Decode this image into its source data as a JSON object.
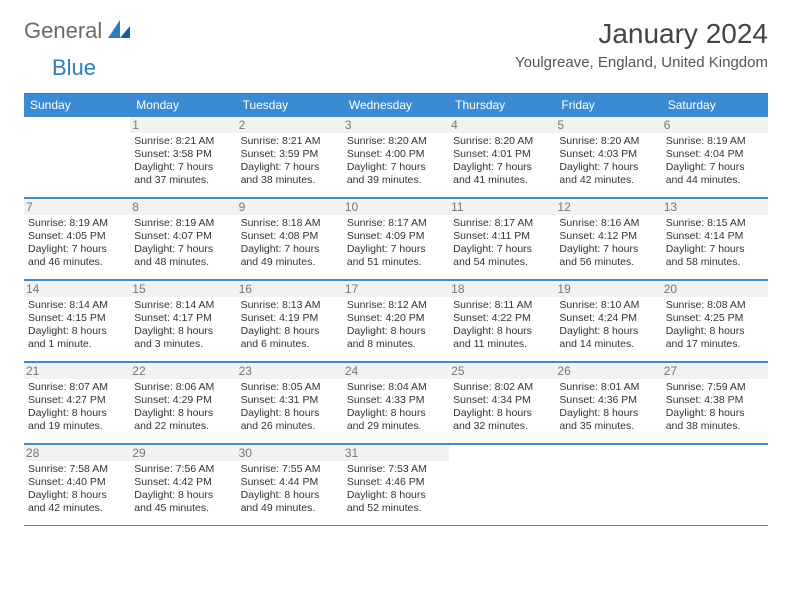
{
  "logo": {
    "text_general": "General",
    "text_blue": "Blue"
  },
  "title": "January 2024",
  "location": "Youlgreave, England, United Kingdom",
  "colors": {
    "header_bg": "#3b8bd4",
    "header_text": "#ffffff",
    "border": "#3b8bd4",
    "daynum_bg": "#f2f2f2",
    "daynum_text": "#777777",
    "body_text": "#333333",
    "logo_gray": "#6a6a6a",
    "logo_blue": "#2f7bbf"
  },
  "day_names": [
    "Sunday",
    "Monday",
    "Tuesday",
    "Wednesday",
    "Thursday",
    "Friday",
    "Saturday"
  ],
  "weeks": [
    [
      null,
      {
        "n": "1",
        "sr": "Sunrise: 8:21 AM",
        "ss": "Sunset: 3:58 PM",
        "d1": "Daylight: 7 hours",
        "d2": "and 37 minutes."
      },
      {
        "n": "2",
        "sr": "Sunrise: 8:21 AM",
        "ss": "Sunset: 3:59 PM",
        "d1": "Daylight: 7 hours",
        "d2": "and 38 minutes."
      },
      {
        "n": "3",
        "sr": "Sunrise: 8:20 AM",
        "ss": "Sunset: 4:00 PM",
        "d1": "Daylight: 7 hours",
        "d2": "and 39 minutes."
      },
      {
        "n": "4",
        "sr": "Sunrise: 8:20 AM",
        "ss": "Sunset: 4:01 PM",
        "d1": "Daylight: 7 hours",
        "d2": "and 41 minutes."
      },
      {
        "n": "5",
        "sr": "Sunrise: 8:20 AM",
        "ss": "Sunset: 4:03 PM",
        "d1": "Daylight: 7 hours",
        "d2": "and 42 minutes."
      },
      {
        "n": "6",
        "sr": "Sunrise: 8:19 AM",
        "ss": "Sunset: 4:04 PM",
        "d1": "Daylight: 7 hours",
        "d2": "and 44 minutes."
      }
    ],
    [
      {
        "n": "7",
        "sr": "Sunrise: 8:19 AM",
        "ss": "Sunset: 4:05 PM",
        "d1": "Daylight: 7 hours",
        "d2": "and 46 minutes."
      },
      {
        "n": "8",
        "sr": "Sunrise: 8:19 AM",
        "ss": "Sunset: 4:07 PM",
        "d1": "Daylight: 7 hours",
        "d2": "and 48 minutes."
      },
      {
        "n": "9",
        "sr": "Sunrise: 8:18 AM",
        "ss": "Sunset: 4:08 PM",
        "d1": "Daylight: 7 hours",
        "d2": "and 49 minutes."
      },
      {
        "n": "10",
        "sr": "Sunrise: 8:17 AM",
        "ss": "Sunset: 4:09 PM",
        "d1": "Daylight: 7 hours",
        "d2": "and 51 minutes."
      },
      {
        "n": "11",
        "sr": "Sunrise: 8:17 AM",
        "ss": "Sunset: 4:11 PM",
        "d1": "Daylight: 7 hours",
        "d2": "and 54 minutes."
      },
      {
        "n": "12",
        "sr": "Sunrise: 8:16 AM",
        "ss": "Sunset: 4:12 PM",
        "d1": "Daylight: 7 hours",
        "d2": "and 56 minutes."
      },
      {
        "n": "13",
        "sr": "Sunrise: 8:15 AM",
        "ss": "Sunset: 4:14 PM",
        "d1": "Daylight: 7 hours",
        "d2": "and 58 minutes."
      }
    ],
    [
      {
        "n": "14",
        "sr": "Sunrise: 8:14 AM",
        "ss": "Sunset: 4:15 PM",
        "d1": "Daylight: 8 hours",
        "d2": "and 1 minute."
      },
      {
        "n": "15",
        "sr": "Sunrise: 8:14 AM",
        "ss": "Sunset: 4:17 PM",
        "d1": "Daylight: 8 hours",
        "d2": "and 3 minutes."
      },
      {
        "n": "16",
        "sr": "Sunrise: 8:13 AM",
        "ss": "Sunset: 4:19 PM",
        "d1": "Daylight: 8 hours",
        "d2": "and 6 minutes."
      },
      {
        "n": "17",
        "sr": "Sunrise: 8:12 AM",
        "ss": "Sunset: 4:20 PM",
        "d1": "Daylight: 8 hours",
        "d2": "and 8 minutes."
      },
      {
        "n": "18",
        "sr": "Sunrise: 8:11 AM",
        "ss": "Sunset: 4:22 PM",
        "d1": "Daylight: 8 hours",
        "d2": "and 11 minutes."
      },
      {
        "n": "19",
        "sr": "Sunrise: 8:10 AM",
        "ss": "Sunset: 4:24 PM",
        "d1": "Daylight: 8 hours",
        "d2": "and 14 minutes."
      },
      {
        "n": "20",
        "sr": "Sunrise: 8:08 AM",
        "ss": "Sunset: 4:25 PM",
        "d1": "Daylight: 8 hours",
        "d2": "and 17 minutes."
      }
    ],
    [
      {
        "n": "21",
        "sr": "Sunrise: 8:07 AM",
        "ss": "Sunset: 4:27 PM",
        "d1": "Daylight: 8 hours",
        "d2": "and 19 minutes."
      },
      {
        "n": "22",
        "sr": "Sunrise: 8:06 AM",
        "ss": "Sunset: 4:29 PM",
        "d1": "Daylight: 8 hours",
        "d2": "and 22 minutes."
      },
      {
        "n": "23",
        "sr": "Sunrise: 8:05 AM",
        "ss": "Sunset: 4:31 PM",
        "d1": "Daylight: 8 hours",
        "d2": "and 26 minutes."
      },
      {
        "n": "24",
        "sr": "Sunrise: 8:04 AM",
        "ss": "Sunset: 4:33 PM",
        "d1": "Daylight: 8 hours",
        "d2": "and 29 minutes."
      },
      {
        "n": "25",
        "sr": "Sunrise: 8:02 AM",
        "ss": "Sunset: 4:34 PM",
        "d1": "Daylight: 8 hours",
        "d2": "and 32 minutes."
      },
      {
        "n": "26",
        "sr": "Sunrise: 8:01 AM",
        "ss": "Sunset: 4:36 PM",
        "d1": "Daylight: 8 hours",
        "d2": "and 35 minutes."
      },
      {
        "n": "27",
        "sr": "Sunrise: 7:59 AM",
        "ss": "Sunset: 4:38 PM",
        "d1": "Daylight: 8 hours",
        "d2": "and 38 minutes."
      }
    ],
    [
      {
        "n": "28",
        "sr": "Sunrise: 7:58 AM",
        "ss": "Sunset: 4:40 PM",
        "d1": "Daylight: 8 hours",
        "d2": "and 42 minutes."
      },
      {
        "n": "29",
        "sr": "Sunrise: 7:56 AM",
        "ss": "Sunset: 4:42 PM",
        "d1": "Daylight: 8 hours",
        "d2": "and 45 minutes."
      },
      {
        "n": "30",
        "sr": "Sunrise: 7:55 AM",
        "ss": "Sunset: 4:44 PM",
        "d1": "Daylight: 8 hours",
        "d2": "and 49 minutes."
      },
      {
        "n": "31",
        "sr": "Sunrise: 7:53 AM",
        "ss": "Sunset: 4:46 PM",
        "d1": "Daylight: 8 hours",
        "d2": "and 52 minutes."
      },
      null,
      null,
      null
    ]
  ]
}
